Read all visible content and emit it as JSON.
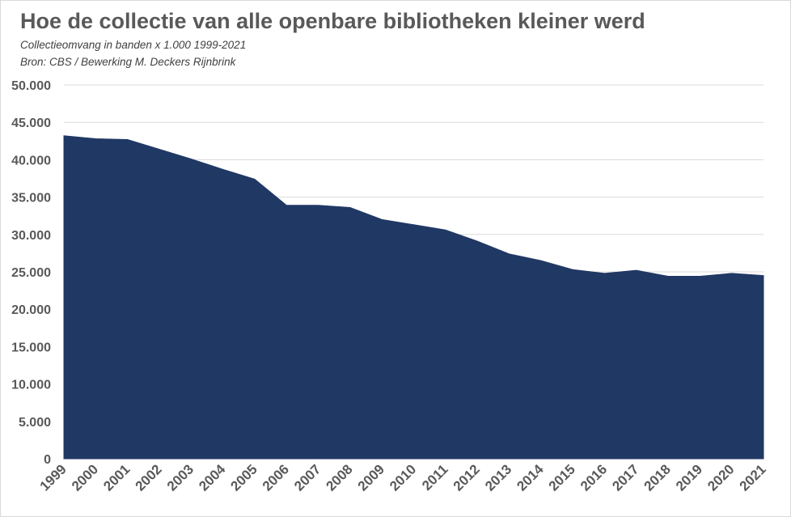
{
  "header": {
    "title": "Hoe de collectie van alle openbare bibliotheken kleiner werd",
    "subtitle": "Collectieomvang in banden x 1.000 1999-2021",
    "source": "Bron: CBS / Bewerking M. Deckers Rijnbrink"
  },
  "colors": {
    "area": "#203864",
    "grid": "#d9d9d9",
    "axis_text": "#595959"
  },
  "chart_data": {
    "type": "area",
    "title": "Hoe de collectie van alle openbare bibliotheken kleiner werd",
    "subtitle": "Collectieomvang in banden x 1.000 1999-2021",
    "source": "Bron: CBS / Bewerking M. Deckers Rijnbrink",
    "xlabel": "",
    "ylabel": "",
    "ylim": [
      0,
      50000
    ],
    "yticks": [
      0,
      5000,
      10000,
      15000,
      20000,
      25000,
      30000,
      35000,
      40000,
      45000,
      50000
    ],
    "ytick_labels": [
      "0",
      "5.000",
      "10.000",
      "15.000",
      "20.000",
      "25.000",
      "30.000",
      "35.000",
      "40.000",
      "45.000",
      "50.000"
    ],
    "categories": [
      "1999",
      "2000",
      "2001",
      "2002",
      "2003",
      "2004",
      "2005",
      "2006",
      "2007",
      "2008",
      "2009",
      "2010",
      "2011",
      "2012",
      "2013",
      "2014",
      "2015",
      "2016",
      "2017",
      "2018",
      "2019",
      "2020",
      "2021"
    ],
    "values": [
      43200,
      42800,
      42700,
      41400,
      40100,
      38700,
      37400,
      33900,
      33900,
      33600,
      32000,
      31300,
      30600,
      29100,
      27400,
      26500,
      25300,
      24800,
      25200,
      24400,
      24400,
      24800,
      24500
    ],
    "grid": true,
    "legend": false
  }
}
